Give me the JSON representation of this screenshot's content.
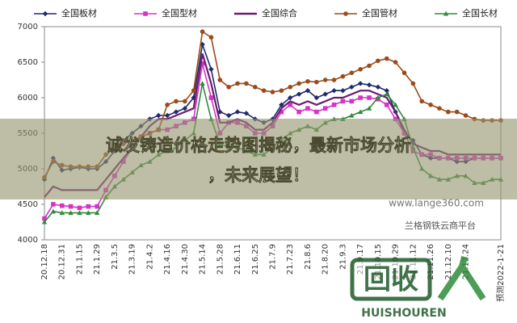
{
  "chart_data": {
    "type": "line",
    "categories": [
      "20.12.18",
      null,
      "20.12.31",
      null,
      "21.1.15",
      null,
      "21.1.29",
      null,
      "21.3.5",
      null,
      "21.3.19",
      null,
      "21.4.2",
      null,
      "21.4.16",
      null,
      "21.4.30",
      null,
      "21.5.14",
      null,
      "21.5.28",
      null,
      "21.6.11",
      null,
      "21.6.25",
      null,
      "21.7.9",
      null,
      "21.7.23",
      null,
      "21.8.6",
      null,
      "21.8.20",
      null,
      "21.9.3",
      null,
      "21.9.17",
      null,
      "21.10.15",
      null,
      "21.10.29",
      null,
      "21.11.12",
      null,
      "21.11.26",
      null,
      "21.12.10",
      null,
      "21.12.24",
      null,
      null,
      null,
      "预测2022-1-21"
    ],
    "series": [
      {
        "name": "全国板材",
        "color": "#1f2a6e",
        "marker": "diamond",
        "values": [
          4850,
          5150,
          4980,
          5000,
          5020,
          5000,
          5000,
          5100,
          5250,
          5400,
          5500,
          5600,
          5700,
          5750,
          5750,
          5800,
          5850,
          6000,
          6750,
          6400,
          5800,
          5750,
          5800,
          5780,
          5700,
          5650,
          5700,
          5900,
          6000,
          6050,
          6100,
          6000,
          6050,
          6100,
          6100,
          6150,
          6200,
          6180,
          6150,
          6100,
          5800,
          5500,
          5400,
          5200,
          5150,
          5150,
          5150,
          5100,
          5100,
          5150,
          5150,
          5150,
          5150
        ]
      },
      {
        "name": "全国型材",
        "color": "#d633c8",
        "marker": "square",
        "values": [
          4300,
          4500,
          4480,
          4470,
          4450,
          4470,
          4470,
          4700,
          4900,
          5100,
          5300,
          5450,
          5500,
          5550,
          5550,
          5600,
          5650,
          5700,
          6480,
          6000,
          5500,
          5650,
          5650,
          5600,
          5500,
          5500,
          5600,
          5800,
          5900,
          5800,
          5850,
          5800,
          5850,
          5900,
          5950,
          5950,
          6000,
          6000,
          5980,
          5900,
          5700,
          5500,
          5250,
          5200,
          5200,
          5150,
          5150,
          5150,
          5150,
          5150,
          5150,
          5150,
          5150
        ]
      },
      {
        "name": "全国综合",
        "color": "#6a1b6e",
        "marker": "none",
        "values": [
          4600,
          4750,
          4700,
          4700,
          4700,
          4700,
          4700,
          4850,
          5000,
          5150,
          5300,
          5450,
          5600,
          5700,
          5700,
          5750,
          5800,
          5850,
          6620,
          6200,
          5650,
          5650,
          5700,
          5650,
          5550,
          5550,
          5650,
          5850,
          5950,
          5900,
          5950,
          5900,
          5950,
          6000,
          6000,
          6050,
          6100,
          6100,
          6050,
          6000,
          5800,
          5550,
          5350,
          5300,
          5250,
          5250,
          5200,
          5200,
          5200,
          5200,
          5200,
          5200,
          5200
        ]
      },
      {
        "name": "全国管材",
        "color": "#9a4a1c",
        "marker": "circle",
        "values": [
          4880,
          5100,
          5050,
          5030,
          5030,
          5030,
          5030,
          5200,
          5300,
          5350,
          5400,
          5450,
          5500,
          5550,
          5900,
          5950,
          5950,
          6100,
          6930,
          6850,
          6250,
          6150,
          6200,
          6200,
          6150,
          6100,
          6080,
          6100,
          6150,
          6200,
          6230,
          6220,
          6250,
          6250,
          6300,
          6350,
          6400,
          6450,
          6520,
          6550,
          6500,
          6350,
          6200,
          5950,
          5900,
          5850,
          5800,
          5800,
          5750,
          5700,
          5680,
          5680,
          5680
        ]
      },
      {
        "name": "全国长材",
        "color": "#2e8b3a",
        "marker": "triangle",
        "values": [
          4250,
          4400,
          4380,
          4380,
          4380,
          4380,
          4380,
          4600,
          4750,
          4850,
          4950,
          5050,
          5100,
          5200,
          5250,
          5300,
          5400,
          5500,
          6200,
          5700,
          5350,
          5300,
          5300,
          5250,
          5200,
          5200,
          5300,
          5400,
          5500,
          5550,
          5600,
          5550,
          5650,
          5700,
          5700,
          5750,
          5800,
          5850,
          6000,
          6050,
          5900,
          5700,
          5300,
          5000,
          4900,
          4850,
          4850,
          4900,
          4900,
          4800,
          4800,
          4850,
          4850
        ]
      }
    ],
    "ylim": [
      4000,
      7000
    ],
    "yticks": [
      4000,
      4500,
      5000,
      5500,
      6000,
      6500,
      7000
    ],
    "watermark": "www.lange360.com",
    "source": "兰格钢铁云商平台"
  },
  "banner": {
    "lines": [
      "诚发铸造价格走势图揭秘，最新市场分析",
      "，未来展望！"
    ]
  },
  "logo": {
    "mark": "回收",
    "text": "HUISHOUREN"
  }
}
